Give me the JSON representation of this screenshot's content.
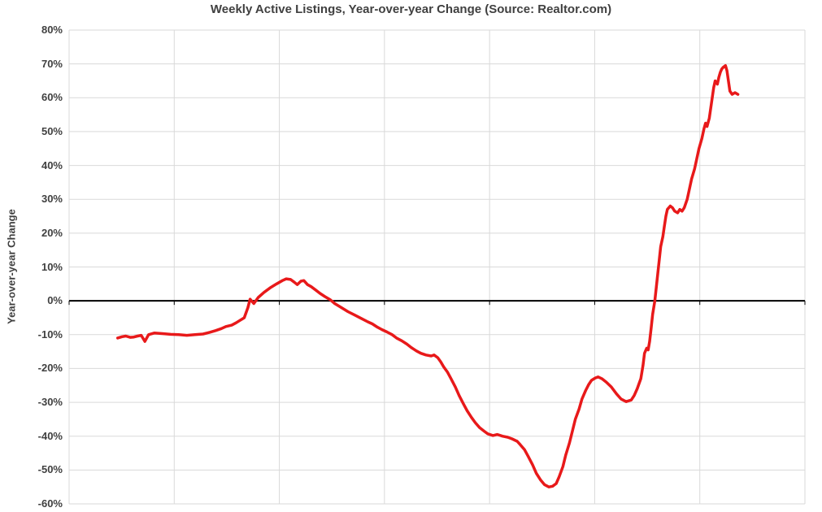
{
  "page": {
    "background": "#ffffff"
  },
  "chart_data": {
    "type": "line",
    "title": "Weekly Active Listings, Year-over-year Change (Source: Realtor.com)",
    "xlabel": "",
    "ylabel": "Year-over-year Change",
    "ylim": [
      -60,
      80
    ],
    "yticks": [
      80,
      70,
      60,
      50,
      40,
      30,
      20,
      10,
      0,
      -10,
      -20,
      -30,
      -40,
      -50,
      -60
    ],
    "ytick_labels": [
      "80%",
      "70%",
      "60%",
      "50%",
      "40%",
      "30%",
      "20%",
      "10%",
      "0%",
      "-10%",
      "-20%",
      "-30%",
      "-40%",
      "-50%",
      "-60%"
    ],
    "xlim": [
      0,
      100
    ],
    "x_gridline_intervals": 7,
    "xtick_labels": [],
    "grid": true,
    "grid_color": "#d9d9d9",
    "zero_line_color": "#000000",
    "legend": "none",
    "line_color": "#e8191a",
    "line_width": 3.5,
    "series": [
      {
        "name": "Weekly Active Listings YoY Change",
        "x_units": "percent of plot width (no x-axis labels shown)",
        "points": [
          [
            6.6,
            -11.0
          ],
          [
            7.2,
            -10.6
          ],
          [
            7.7,
            -10.4
          ],
          [
            8.3,
            -10.8
          ],
          [
            8.8,
            -10.7
          ],
          [
            9.3,
            -10.4
          ],
          [
            9.8,
            -10.2
          ],
          [
            10.3,
            -12.0
          ],
          [
            10.8,
            -10.0
          ],
          [
            11.6,
            -9.5
          ],
          [
            12.7,
            -9.7
          ],
          [
            13.8,
            -9.9
          ],
          [
            14.9,
            -10.0
          ],
          [
            16.0,
            -10.2
          ],
          [
            17.1,
            -10.0
          ],
          [
            18.2,
            -9.8
          ],
          [
            19.1,
            -9.3
          ],
          [
            19.9,
            -8.8
          ],
          [
            20.7,
            -8.2
          ],
          [
            21.3,
            -7.6
          ],
          [
            22.1,
            -7.2
          ],
          [
            22.7,
            -6.5
          ],
          [
            23.2,
            -5.8
          ],
          [
            23.8,
            -5.0
          ],
          [
            24.3,
            -2.0
          ],
          [
            24.6,
            0.5
          ],
          [
            25.1,
            -0.8
          ],
          [
            25.7,
            1.0
          ],
          [
            26.5,
            2.5
          ],
          [
            27.3,
            3.8
          ],
          [
            28.2,
            5.0
          ],
          [
            29.0,
            6.0
          ],
          [
            29.5,
            6.5
          ],
          [
            30.1,
            6.3
          ],
          [
            30.6,
            5.5
          ],
          [
            31.0,
            4.8
          ],
          [
            31.5,
            5.8
          ],
          [
            31.9,
            6.0
          ],
          [
            32.4,
            4.8
          ],
          [
            32.9,
            4.2
          ],
          [
            33.5,
            3.2
          ],
          [
            34.1,
            2.2
          ],
          [
            34.8,
            1.2
          ],
          [
            35.5,
            0.3
          ],
          [
            36.1,
            -0.8
          ],
          [
            37.0,
            -2.0
          ],
          [
            37.9,
            -3.2
          ],
          [
            38.8,
            -4.2
          ],
          [
            39.7,
            -5.2
          ],
          [
            40.6,
            -6.2
          ],
          [
            41.2,
            -6.8
          ],
          [
            41.9,
            -7.8
          ],
          [
            42.5,
            -8.5
          ],
          [
            43.2,
            -9.2
          ],
          [
            43.9,
            -10.0
          ],
          [
            44.5,
            -11.0
          ],
          [
            45.2,
            -11.8
          ],
          [
            45.9,
            -12.8
          ],
          [
            46.5,
            -13.8
          ],
          [
            47.2,
            -14.8
          ],
          [
            47.8,
            -15.5
          ],
          [
            48.5,
            -16.0
          ],
          [
            49.2,
            -16.3
          ],
          [
            49.6,
            -16.0
          ],
          [
            50.1,
            -16.8
          ],
          [
            50.5,
            -18.0
          ],
          [
            50.9,
            -19.5
          ],
          [
            51.4,
            -21.0
          ],
          [
            51.9,
            -23.0
          ],
          [
            52.5,
            -25.5
          ],
          [
            53.0,
            -28.0
          ],
          [
            53.6,
            -30.5
          ],
          [
            54.1,
            -32.5
          ],
          [
            54.7,
            -34.5
          ],
          [
            55.2,
            -36.0
          ],
          [
            55.8,
            -37.5
          ],
          [
            56.4,
            -38.5
          ],
          [
            56.9,
            -39.3
          ],
          [
            57.6,
            -39.8
          ],
          [
            58.2,
            -39.5
          ],
          [
            58.9,
            -40.0
          ],
          [
            59.6,
            -40.3
          ],
          [
            60.2,
            -40.8
          ],
          [
            60.9,
            -41.5
          ],
          [
            61.3,
            -42.5
          ],
          [
            61.9,
            -44.0
          ],
          [
            62.4,
            -46.0
          ],
          [
            63.0,
            -48.5
          ],
          [
            63.5,
            -51.0
          ],
          [
            64.1,
            -53.0
          ],
          [
            64.6,
            -54.3
          ],
          [
            65.2,
            -55.0
          ],
          [
            65.7,
            -54.8
          ],
          [
            66.2,
            -54.0
          ],
          [
            66.6,
            -52.0
          ],
          [
            67.1,
            -49.0
          ],
          [
            67.5,
            -45.5
          ],
          [
            68.0,
            -42.0
          ],
          [
            68.4,
            -38.5
          ],
          [
            68.8,
            -35.0
          ],
          [
            69.3,
            -32.0
          ],
          [
            69.7,
            -29.0
          ],
          [
            70.2,
            -26.5
          ],
          [
            70.6,
            -24.8
          ],
          [
            71.0,
            -23.5
          ],
          [
            71.5,
            -22.8
          ],
          [
            71.9,
            -22.5
          ],
          [
            72.4,
            -23.0
          ],
          [
            73.0,
            -24.0
          ],
          [
            73.7,
            -25.5
          ],
          [
            74.4,
            -27.5
          ],
          [
            75.0,
            -29.0
          ],
          [
            75.7,
            -29.8
          ],
          [
            76.4,
            -29.3
          ],
          [
            76.8,
            -28.0
          ],
          [
            77.2,
            -26.0
          ],
          [
            77.7,
            -23.0
          ],
          [
            78.0,
            -19.0
          ],
          [
            78.2,
            -15.5
          ],
          [
            78.5,
            -14.0
          ],
          [
            78.7,
            -14.5
          ],
          [
            78.9,
            -12.0
          ],
          [
            79.1,
            -8.0
          ],
          [
            79.3,
            -4.0
          ],
          [
            79.6,
            0.0
          ],
          [
            79.8,
            4.0
          ],
          [
            80.0,
            8.0
          ],
          [
            80.2,
            12.0
          ],
          [
            80.4,
            16.0
          ],
          [
            80.7,
            19.0
          ],
          [
            80.9,
            22.0
          ],
          [
            81.1,
            25.0
          ],
          [
            81.3,
            27.0
          ],
          [
            81.7,
            28.0
          ],
          [
            82.0,
            27.5
          ],
          [
            82.3,
            26.5
          ],
          [
            82.7,
            26.0
          ],
          [
            83.0,
            27.0
          ],
          [
            83.3,
            26.5
          ],
          [
            83.6,
            27.5
          ],
          [
            84.0,
            30.0
          ],
          [
            84.3,
            33.0
          ],
          [
            84.6,
            36.0
          ],
          [
            85.0,
            39.0
          ],
          [
            85.3,
            42.0
          ],
          [
            85.6,
            45.0
          ],
          [
            86.0,
            48.0
          ],
          [
            86.3,
            51.0
          ],
          [
            86.5,
            52.5
          ],
          [
            86.7,
            51.5
          ],
          [
            87.0,
            54.0
          ],
          [
            87.2,
            57.0
          ],
          [
            87.4,
            60.0
          ],
          [
            87.6,
            63.0
          ],
          [
            87.8,
            65.0
          ],
          [
            88.1,
            64.0
          ],
          [
            88.3,
            66.0
          ],
          [
            88.5,
            67.5
          ],
          [
            88.7,
            68.5
          ],
          [
            88.9,
            69.0
          ],
          [
            89.2,
            69.5
          ],
          [
            89.4,
            68.0
          ],
          [
            89.6,
            65.0
          ],
          [
            89.8,
            62.0
          ],
          [
            90.1,
            61.0
          ],
          [
            90.5,
            61.5
          ],
          [
            90.9,
            61.0
          ]
        ]
      }
    ]
  }
}
